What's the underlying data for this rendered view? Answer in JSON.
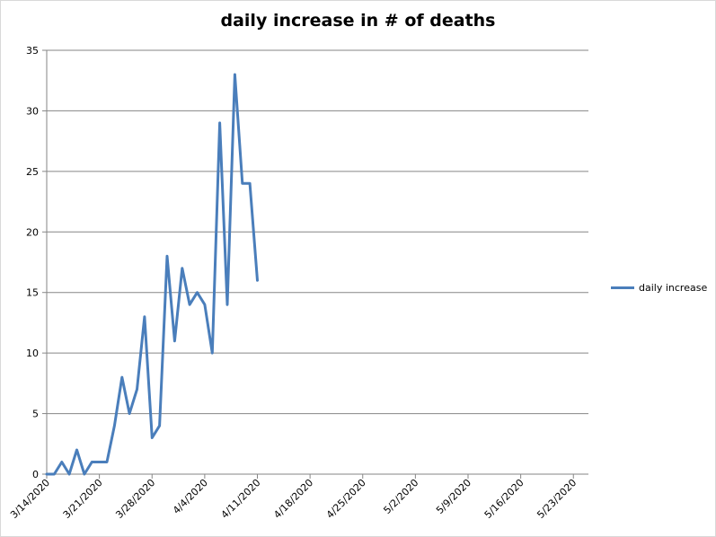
{
  "chart_data": {
    "type": "line",
    "title": "daily increase in # of deaths",
    "xlabel": "",
    "ylabel": "",
    "ylim": [
      0,
      35
    ],
    "yticks": [
      0,
      5,
      10,
      15,
      20,
      25,
      30,
      35
    ],
    "xlim": [
      "3/14/2020",
      "5/25/2020"
    ],
    "xtick_labels": [
      "3/14/2020",
      "3/21/2020",
      "3/28/2020",
      "4/4/2020",
      "4/11/2020",
      "4/18/2020",
      "4/25/2020",
      "5/2/2020",
      "5/9/2020",
      "5/16/2020",
      "5/23/2020"
    ],
    "grid": "horizontal",
    "legend_position": "right",
    "series": [
      {
        "name": "daily increase",
        "color": "#4a7ebb",
        "x": [
          "3/14/2020",
          "3/15/2020",
          "3/16/2020",
          "3/17/2020",
          "3/18/2020",
          "3/19/2020",
          "3/20/2020",
          "3/21/2020",
          "3/22/2020",
          "3/23/2020",
          "3/24/2020",
          "3/25/2020",
          "3/26/2020",
          "3/27/2020",
          "3/28/2020",
          "3/29/2020",
          "3/30/2020",
          "3/31/2020",
          "4/1/2020",
          "4/2/2020",
          "4/3/2020",
          "4/4/2020",
          "4/5/2020",
          "4/6/2020",
          "4/7/2020",
          "4/8/2020",
          "4/9/2020",
          "4/10/2020",
          "4/11/2020",
          "4/12/2020"
        ],
        "values": [
          0,
          0,
          1,
          0,
          2,
          0,
          1,
          1,
          1,
          4,
          8,
          5,
          7,
          13,
          3,
          4,
          18,
          11,
          17,
          14,
          15,
          14,
          10,
          29,
          14,
          33,
          24,
          24,
          16,
          null
        ]
      }
    ]
  }
}
